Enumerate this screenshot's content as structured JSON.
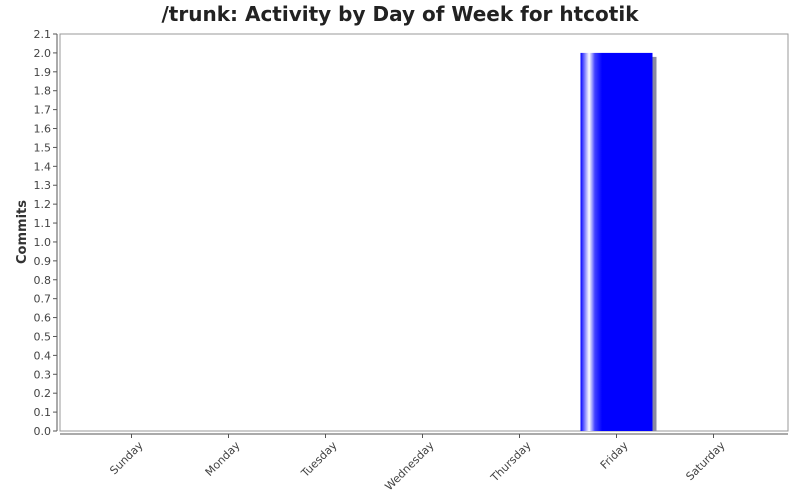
{
  "chart_data": {
    "type": "bar",
    "title": "/trunk: Activity by Day of Week for htcotik",
    "xlabel": "",
    "ylabel": "Commits",
    "categories": [
      "Sunday",
      "Monday",
      "Tuesday",
      "Wednesday",
      "Thursday",
      "Friday",
      "Saturday"
    ],
    "values": [
      0,
      0,
      0,
      0,
      0,
      2.0,
      0
    ],
    "ylim": [
      0,
      2.1
    ],
    "yticks": [
      "0.0",
      "0.1",
      "0.2",
      "0.3",
      "0.4",
      "0.5",
      "0.6",
      "0.7",
      "0.8",
      "0.9",
      "1.0",
      "1.1",
      "1.2",
      "1.3",
      "1.4",
      "1.5",
      "1.6",
      "1.7",
      "1.8",
      "1.9",
      "2.0",
      "2.1"
    ],
    "grid": false,
    "bar_color": "#0000ff",
    "shadow_color": "#8a8aa0"
  }
}
